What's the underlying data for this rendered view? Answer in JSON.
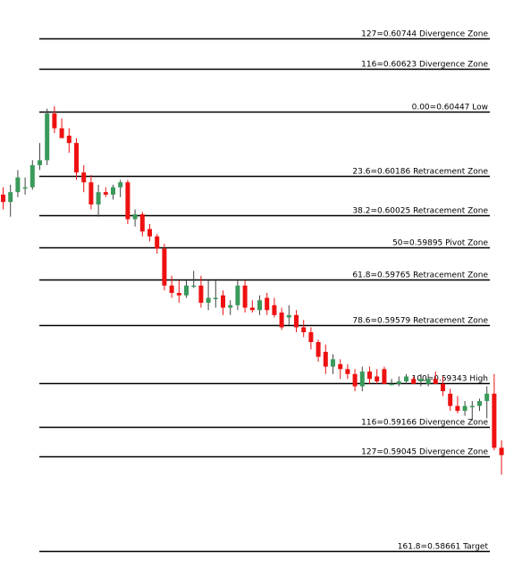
{
  "chart_data": {
    "type": "candlestick",
    "title": "",
    "xlabel": "",
    "ylabel": "",
    "ylim": [
      0.58558,
      0.60902
    ],
    "grid": false,
    "colors": {
      "up": "#3a9a5b",
      "down": "#ee1111",
      "wick": "#444444",
      "level_line": "#000000"
    },
    "levels": [
      {
        "label": "127=0.60744 Divergence Zone",
        "price": 0.60744
      },
      {
        "label": "116=0.60623 Divergence Zone",
        "price": 0.60623
      },
      {
        "label": "0.00=0.60447 Low",
        "price": 0.60447
      },
      {
        "label": "23.6=0.60186 Retracement Zone",
        "price": 0.60186
      },
      {
        "label": "38.2=0.60025 Retracement Zone",
        "price": 0.60025
      },
      {
        "label": "50=0.59895 Pivot Zone",
        "price": 0.59895
      },
      {
        "label": "61.8=0.59765 Retracement Zone",
        "price": 0.59765
      },
      {
        "label": "78.6=0.59579 Retracement Zone",
        "price": 0.59579
      },
      {
        "label": "100=0.59343 High",
        "price": 0.59343
      },
      {
        "label": "116=0.59166 Divergence Zone",
        "price": 0.59166
      },
      {
        "label": "127=0.59045 Divergence Zone",
        "price": 0.59045
      },
      {
        "label": "161.8=0.58661 Target",
        "price": 0.58661
      }
    ],
    "candles": [
      {
        "o": 0.6011,
        "h": 0.6014,
        "l": 0.6005,
        "c": 0.6008
      },
      {
        "o": 0.6008,
        "h": 0.6015,
        "l": 0.6002,
        "c": 0.6012
      },
      {
        "o": 0.6012,
        "h": 0.6021,
        "l": 0.601,
        "c": 0.6018
      },
      {
        "o": 0.6014,
        "h": 0.6018,
        "l": 0.6011,
        "c": 0.6014
      },
      {
        "o": 0.6014,
        "h": 0.6025,
        "l": 0.6013,
        "c": 0.6023
      },
      {
        "o": 0.6023,
        "h": 0.6032,
        "l": 0.6021,
        "c": 0.6025
      },
      {
        "o": 0.6025,
        "h": 0.6046,
        "l": 0.6023,
        "c": 0.6044
      },
      {
        "o": 0.6044,
        "h": 0.6047,
        "l": 0.6036,
        "c": 0.6038
      },
      {
        "o": 0.6038,
        "h": 0.6042,
        "l": 0.6034,
        "c": 0.6034
      },
      {
        "o": 0.6035,
        "h": 0.6038,
        "l": 0.6028,
        "c": 0.6032
      },
      {
        "o": 0.6032,
        "h": 0.6034,
        "l": 0.6017,
        "c": 0.602
      },
      {
        "o": 0.602,
        "h": 0.6023,
        "l": 0.6012,
        "c": 0.6016
      },
      {
        "o": 0.6016,
        "h": 0.6019,
        "l": 0.6005,
        "c": 0.6007
      },
      {
        "o": 0.6007,
        "h": 0.6015,
        "l": 0.6002,
        "c": 0.6012
      },
      {
        "o": 0.6012,
        "h": 0.6014,
        "l": 0.601,
        "c": 0.6011
      },
      {
        "o": 0.6011,
        "h": 0.6015,
        "l": 0.6009,
        "c": 0.6014
      },
      {
        "o": 0.6014,
        "h": 0.6017,
        "l": 0.601,
        "c": 0.6016
      },
      {
        "o": 0.6016,
        "h": 0.6017,
        "l": 0.5999,
        "c": 0.6001
      },
      {
        "o": 0.6001,
        "h": 0.6005,
        "l": 0.5998,
        "c": 0.6003
      },
      {
        "o": 0.6003,
        "h": 0.6004,
        "l": 0.5994,
        "c": 0.5996
      },
      {
        "o": 0.5997,
        "h": 0.5999,
        "l": 0.5992,
        "c": 0.5994
      },
      {
        "o": 0.5994,
        "h": 0.5995,
        "l": 0.5987,
        "c": 0.5989
      },
      {
        "o": 0.5989,
        "h": 0.5991,
        "l": 0.5972,
        "c": 0.5974
      },
      {
        "o": 0.5974,
        "h": 0.5978,
        "l": 0.5969,
        "c": 0.5971
      },
      {
        "o": 0.5971,
        "h": 0.5976,
        "l": 0.5967,
        "c": 0.597
      },
      {
        "o": 0.597,
        "h": 0.5976,
        "l": 0.5969,
        "c": 0.5974
      },
      {
        "o": 0.5974,
        "h": 0.598,
        "l": 0.5973,
        "c": 0.5974
      },
      {
        "o": 0.5974,
        "h": 0.5978,
        "l": 0.5965,
        "c": 0.5967
      },
      {
        "o": 0.5967,
        "h": 0.5976,
        "l": 0.5964,
        "c": 0.5969
      },
      {
        "o": 0.5969,
        "h": 0.5976,
        "l": 0.5965,
        "c": 0.5969
      },
      {
        "o": 0.597,
        "h": 0.5972,
        "l": 0.5962,
        "c": 0.5965
      },
      {
        "o": 0.5965,
        "h": 0.5968,
        "l": 0.5962,
        "c": 0.5966
      },
      {
        "o": 0.5966,
        "h": 0.5976,
        "l": 0.5964,
        "c": 0.5974
      },
      {
        "o": 0.5974,
        "h": 0.5976,
        "l": 0.5963,
        "c": 0.5965
      },
      {
        "o": 0.5965,
        "h": 0.5968,
        "l": 0.5963,
        "c": 0.5964
      },
      {
        "o": 0.5964,
        "h": 0.597,
        "l": 0.5962,
        "c": 0.5968
      },
      {
        "o": 0.5969,
        "h": 0.5971,
        "l": 0.5962,
        "c": 0.5964
      },
      {
        "o": 0.5966,
        "h": 0.5969,
        "l": 0.5961,
        "c": 0.5962
      },
      {
        "o": 0.5963,
        "h": 0.5965,
        "l": 0.5956,
        "c": 0.5957
      },
      {
        "o": 0.5961,
        "h": 0.5966,
        "l": 0.5958,
        "c": 0.5962
      },
      {
        "o": 0.5962,
        "h": 0.5964,
        "l": 0.5955,
        "c": 0.5957
      },
      {
        "o": 0.5957,
        "h": 0.596,
        "l": 0.5953,
        "c": 0.5955
      },
      {
        "o": 0.5955,
        "h": 0.5957,
        "l": 0.5948,
        "c": 0.5951
      },
      {
        "o": 0.5951,
        "h": 0.5952,
        "l": 0.5943,
        "c": 0.5945
      },
      {
        "o": 0.5947,
        "h": 0.595,
        "l": 0.5938,
        "c": 0.5941
      },
      {
        "o": 0.5941,
        "h": 0.5946,
        "l": 0.5938,
        "c": 0.5944
      },
      {
        "o": 0.5942,
        "h": 0.5944,
        "l": 0.5936,
        "c": 0.594
      },
      {
        "o": 0.594,
        "h": 0.5942,
        "l": 0.5936,
        "c": 0.5938
      },
      {
        "o": 0.5938,
        "h": 0.594,
        "l": 0.5931,
        "c": 0.5933
      },
      {
        "o": 0.5933,
        "h": 0.5941,
        "l": 0.5931,
        "c": 0.5939
      },
      {
        "o": 0.5939,
        "h": 0.5941,
        "l": 0.5934,
        "c": 0.5936
      },
      {
        "o": 0.5937,
        "h": 0.594,
        "l": 0.5934,
        "c": 0.5935
      },
      {
        "o": 0.594,
        "h": 0.5941,
        "l": 0.5934,
        "c": 0.5934
      },
      {
        "o": 0.5934,
        "h": 0.5936,
        "l": 0.5934,
        "c": 0.5934
      },
      {
        "o": 0.5934,
        "h": 0.5937,
        "l": 0.5933,
        "c": 0.5935
      },
      {
        "o": 0.5935,
        "h": 0.5938,
        "l": 0.5934,
        "c": 0.5937
      },
      {
        "o": 0.5936,
        "h": 0.5937,
        "l": 0.5934,
        "c": 0.5934
      },
      {
        "o": 0.5935,
        "h": 0.5938,
        "l": 0.5933,
        "c": 0.5936
      },
      {
        "o": 0.5934,
        "h": 0.5938,
        "l": 0.5933,
        "c": 0.5936
      },
      {
        "o": 0.5936,
        "h": 0.5939,
        "l": 0.5934,
        "c": 0.5934
      },
      {
        "o": 0.5934,
        "h": 0.5937,
        "l": 0.5929,
        "c": 0.5931
      },
      {
        "o": 0.593,
        "h": 0.5932,
        "l": 0.5923,
        "c": 0.5925
      },
      {
        "o": 0.5925,
        "h": 0.5929,
        "l": 0.5922,
        "c": 0.5923
      },
      {
        "o": 0.5923,
        "h": 0.5927,
        "l": 0.5921,
        "c": 0.5925
      },
      {
        "o": 0.5925,
        "h": 0.5927,
        "l": 0.5919,
        "c": 0.5925
      },
      {
        "o": 0.5925,
        "h": 0.5928,
        "l": 0.5923,
        "c": 0.5927
      },
      {
        "o": 0.5927,
        "h": 0.5933,
        "l": 0.592,
        "c": 0.593
      },
      {
        "o": 0.593,
        "h": 0.5938,
        "l": 0.5907,
        "c": 0.5908
      },
      {
        "o": 0.5908,
        "h": 0.5911,
        "l": 0.5897,
        "c": 0.5905
      }
    ]
  }
}
